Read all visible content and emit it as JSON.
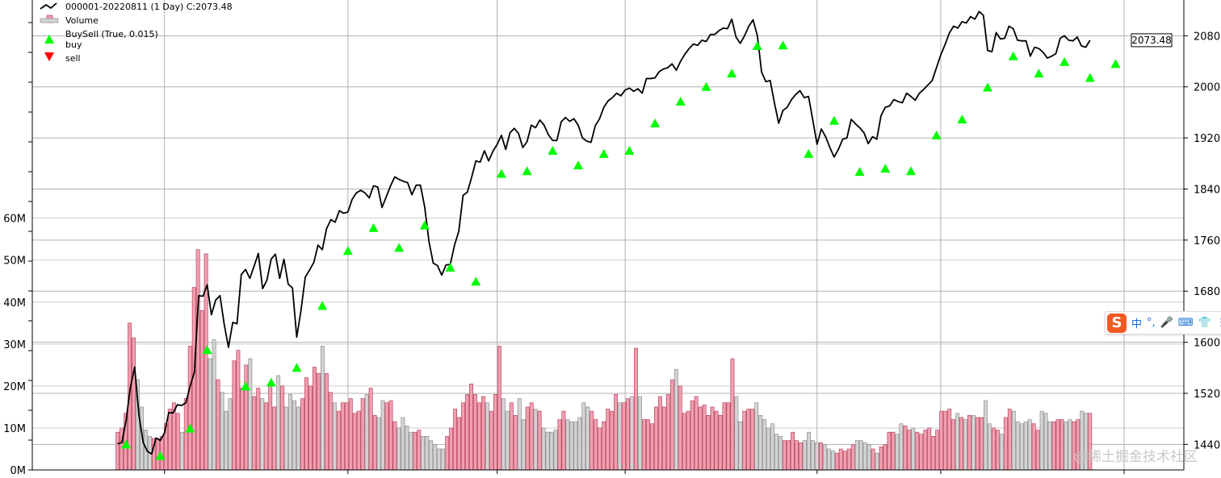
{
  "chart_data": {
    "type": "line",
    "legend": {
      "placement": "top-left",
      "entries": [
        {
          "label": "000001-20220811 (1 Day) C:2073.48",
          "marker": "line",
          "color": "#000000"
        },
        {
          "label": "Volume",
          "marker": "bar",
          "color": "#f0a0b0"
        },
        {
          "label": "BuySell (True, 0.015)",
          "marker": "none"
        },
        {
          "label": "buy",
          "marker": "triangle-up",
          "color": "#00ff00"
        },
        {
          "label": "sell",
          "marker": "triangle-down",
          "color": "#ff0000"
        }
      ]
    },
    "last_price_label": "2073.48",
    "price_axis": {
      "side": "right",
      "range": [
        1400,
        2136
      ],
      "ticks": [
        1440,
        1520,
        1600,
        1680,
        1760,
        1840,
        1920,
        2000,
        2080
      ]
    },
    "volume_axis": {
      "side": "left",
      "range": [
        0,
        112
      ],
      "unit": "M",
      "ticks": [
        0,
        10,
        20,
        30,
        40,
        50,
        60
      ],
      "tick_labels": [
        "0M",
        "10M",
        "20M",
        "30M",
        "40M",
        "50M",
        "60M"
      ]
    },
    "x_range": [
      -20,
      250
    ],
    "x_gridlines": [
      11,
      54,
      89,
      119,
      164,
      193,
      236,
      268
    ],
    "grid": true,
    "colors": {
      "close": "#000000",
      "volume_up": "#f0a0b0",
      "volume_down": "#d3d3d3",
      "volume_edge_up": "#b03050",
      "volume_edge_down": "#808080",
      "buy": "#00ff00",
      "sell": "#ff0000",
      "grid": "#b0b0b0"
    },
    "close_anchors": [
      [
        0,
        1441
      ],
      [
        1,
        1443
      ],
      [
        2,
        1478
      ],
      [
        3,
        1530
      ],
      [
        4,
        1561
      ],
      [
        5,
        1486
      ],
      [
        6,
        1443
      ],
      [
        7,
        1429
      ],
      [
        8,
        1425
      ],
      [
        9,
        1450
      ],
      [
        10,
        1446
      ],
      [
        11,
        1458
      ],
      [
        12,
        1490
      ],
      [
        13,
        1489
      ],
      [
        14,
        1502
      ],
      [
        15,
        1501
      ],
      [
        16,
        1505
      ],
      [
        17,
        1531
      ],
      [
        18,
        1553
      ],
      [
        19,
        1673
      ],
      [
        20,
        1672
      ],
      [
        21,
        1690
      ],
      [
        22,
        1643
      ],
      [
        23,
        1666
      ],
      [
        24,
        1673
      ],
      [
        25,
        1628
      ],
      [
        26,
        1592
      ],
      [
        27,
        1631
      ],
      [
        28,
        1629
      ],
      [
        29,
        1706
      ],
      [
        30,
        1714
      ],
      [
        31,
        1700
      ],
      [
        32,
        1719
      ],
      [
        33,
        1739
      ],
      [
        34,
        1684
      ],
      [
        35,
        1697
      ],
      [
        36,
        1730
      ],
      [
        37,
        1738
      ],
      [
        38,
        1700
      ],
      [
        39,
        1730
      ],
      [
        40,
        1691
      ],
      [
        41,
        1685
      ],
      [
        42,
        1608
      ],
      [
        43,
        1650
      ],
      [
        44,
        1702
      ],
      [
        45,
        1713
      ],
      [
        46,
        1725
      ],
      [
        47,
        1752
      ],
      [
        48,
        1745
      ],
      [
        49,
        1778
      ],
      [
        50,
        1792
      ],
      [
        51,
        1788
      ],
      [
        52,
        1806
      ],
      [
        53,
        1802
      ],
      [
        54,
        1804
      ],
      [
        55,
        1824
      ],
      [
        56,
        1834
      ],
      [
        57,
        1838
      ],
      [
        58,
        1834
      ],
      [
        59,
        1826
      ],
      [
        60,
        1845
      ],
      [
        61,
        1843
      ],
      [
        62,
        1811
      ],
      [
        63,
        1828
      ],
      [
        64,
        1845
      ],
      [
        65,
        1859
      ],
      [
        66,
        1855
      ],
      [
        67,
        1852
      ],
      [
        68,
        1850
      ],
      [
        69,
        1831
      ],
      [
        70,
        1846
      ],
      [
        71,
        1846
      ],
      [
        72,
        1812
      ],
      [
        73,
        1758
      ],
      [
        74,
        1724
      ],
      [
        75,
        1720
      ],
      [
        76,
        1705
      ],
      [
        77,
        1721
      ],
      [
        78,
        1722
      ],
      [
        79,
        1752
      ],
      [
        80,
        1774
      ],
      [
        81,
        1830
      ],
      [
        82,
        1835
      ],
      [
        83,
        1858
      ],
      [
        84,
        1884
      ],
      [
        85,
        1882
      ],
      [
        86,
        1900
      ],
      [
        87,
        1884
      ],
      [
        88,
        1899
      ],
      [
        89,
        1910
      ],
      [
        90,
        1924
      ],
      [
        91,
        1902
      ],
      [
        92,
        1928
      ],
      [
        93,
        1935
      ],
      [
        94,
        1927
      ],
      [
        95,
        1905
      ],
      [
        96,
        1914
      ],
      [
        97,
        1940
      ],
      [
        98,
        1936
      ],
      [
        99,
        1948
      ],
      [
        100,
        1940
      ],
      [
        101,
        1925
      ],
      [
        102,
        1916
      ],
      [
        103,
        1916
      ],
      [
        104,
        1945
      ],
      [
        105,
        1952
      ],
      [
        106,
        1946
      ],
      [
        107,
        1950
      ],
      [
        108,
        1940
      ],
      [
        109,
        1920
      ],
      [
        110,
        1915
      ],
      [
        111,
        1913
      ],
      [
        112,
        1939
      ],
      [
        113,
        1950
      ],
      [
        114,
        1968
      ],
      [
        115,
        1978
      ],
      [
        116,
        1983
      ],
      [
        117,
        1990
      ],
      [
        118,
        1986
      ],
      [
        119,
        1995
      ],
      [
        120,
        1998
      ],
      [
        121,
        1993
      ],
      [
        122,
        1997
      ],
      [
        123,
        1990
      ],
      [
        124,
        2013
      ],
      [
        125,
        2013
      ],
      [
        126,
        2014
      ],
      [
        127,
        2024
      ],
      [
        128,
        2028
      ],
      [
        129,
        2030
      ],
      [
        130,
        2036
      ],
      [
        131,
        2026
      ],
      [
        132,
        2040
      ],
      [
        133,
        2051
      ],
      [
        134,
        2060
      ],
      [
        135,
        2067
      ],
      [
        136,
        2065
      ],
      [
        137,
        2073
      ],
      [
        138,
        2071
      ],
      [
        139,
        2082
      ],
      [
        140,
        2082
      ],
      [
        141,
        2088
      ],
      [
        142,
        2092
      ],
      [
        143,
        2091
      ],
      [
        144,
        2106
      ],
      [
        145,
        2078
      ],
      [
        146,
        2068
      ],
      [
        147,
        2080
      ],
      [
        148,
        2095
      ],
      [
        149,
        2105
      ],
      [
        150,
        2080
      ],
      [
        151,
        2023
      ],
      [
        152,
        2008
      ],
      [
        153,
        2010
      ],
      [
        154,
        1975
      ],
      [
        155,
        1943
      ],
      [
        156,
        1963
      ],
      [
        157,
        1968
      ],
      [
        158,
        1980
      ],
      [
        159,
        1988
      ],
      [
        160,
        1994
      ],
      [
        161,
        1983
      ],
      [
        162,
        1985
      ],
      [
        163,
        1948
      ],
      [
        164,
        1910
      ],
      [
        165,
        1934
      ],
      [
        166,
        1922
      ],
      [
        167,
        1905
      ],
      [
        168,
        1890
      ],
      [
        169,
        1902
      ],
      [
        170,
        1918
      ],
      [
        171,
        1920
      ],
      [
        172,
        1949
      ],
      [
        173,
        1942
      ],
      [
        174,
        1936
      ],
      [
        175,
        1928
      ],
      [
        176,
        1911
      ],
      [
        177,
        1922
      ],
      [
        178,
        1918
      ],
      [
        179,
        1955
      ],
      [
        180,
        1968
      ],
      [
        181,
        1970
      ],
      [
        182,
        1980
      ],
      [
        183,
        1977
      ],
      [
        184,
        1975
      ],
      [
        185,
        1990
      ],
      [
        186,
        1985
      ],
      [
        187,
        1979
      ],
      [
        188,
        1990
      ],
      [
        189,
        1996
      ],
      [
        190,
        2003
      ],
      [
        191,
        2010
      ],
      [
        192,
        2030
      ],
      [
        193,
        2050
      ],
      [
        194,
        2066
      ],
      [
        195,
        2084
      ],
      [
        196,
        2095
      ],
      [
        197,
        2092
      ],
      [
        198,
        2102
      ],
      [
        199,
        2100
      ],
      [
        200,
        2110
      ],
      [
        201,
        2106
      ],
      [
        202,
        2118
      ],
      [
        203,
        2112
      ],
      [
        204,
        2057
      ],
      [
        205,
        2055
      ],
      [
        206,
        2085
      ],
      [
        207,
        2075
      ],
      [
        208,
        2076
      ],
      [
        209,
        2095
      ],
      [
        210,
        2091
      ],
      [
        211,
        2073
      ],
      [
        212,
        2072
      ],
      [
        213,
        2072
      ],
      [
        214,
        2048
      ],
      [
        215,
        2062
      ],
      [
        216,
        2060
      ],
      [
        217,
        2054
      ],
      [
        218,
        2045
      ],
      [
        219,
        2048
      ],
      [
        220,
        2052
      ],
      [
        221,
        2076
      ],
      [
        222,
        2080
      ],
      [
        223,
        2073
      ],
      [
        224,
        2072
      ],
      [
        225,
        2078
      ],
      [
        226,
        2064
      ],
      [
        227,
        2062
      ],
      [
        228,
        2073
      ]
    ],
    "buy_signals": [
      [
        2,
        1440
      ],
      [
        10,
        1422
      ],
      [
        17,
        1465
      ],
      [
        21,
        1588
      ],
      [
        30,
        1531
      ],
      [
        36,
        1537
      ],
      [
        42,
        1560
      ],
      [
        48,
        1657
      ],
      [
        54,
        1743
      ],
      [
        60,
        1779
      ],
      [
        66,
        1748
      ],
      [
        72,
        1783
      ],
      [
        78,
        1717
      ],
      [
        84,
        1695
      ],
      [
        90,
        1864
      ],
      [
        96,
        1868
      ],
      [
        102,
        1900
      ],
      [
        108,
        1877
      ],
      [
        114,
        1895
      ],
      [
        120,
        1900
      ],
      [
        126,
        1943
      ],
      [
        132,
        1977
      ],
      [
        138,
        2000
      ],
      [
        144,
        2021
      ],
      [
        150,
        2064
      ],
      [
        156,
        2065
      ],
      [
        162,
        1895
      ],
      [
        168,
        1947
      ],
      [
        174,
        1867
      ],
      [
        180,
        1872
      ],
      [
        186,
        1868
      ],
      [
        192,
        1924
      ],
      [
        198,
        1949
      ],
      [
        204,
        1999
      ],
      [
        210,
        2048
      ],
      [
        216,
        2021
      ],
      [
        222,
        2039
      ],
      [
        228,
        2014
      ],
      [
        234,
        2036
      ]
    ],
    "sell_signals": [],
    "volume_millions": [
      9,
      10,
      13.5,
      35,
      31.5,
      21.5,
      15,
      9.5,
      8,
      7.5,
      7.5,
      8,
      11,
      14.5,
      16,
      13.5,
      9,
      17,
      29.5,
      43.5,
      52.5,
      38,
      51.5,
      26.5,
      31,
      21.5,
      18.5,
      14,
      17,
      26,
      28.5,
      19.5,
      25,
      26.5,
      17.5,
      19.5,
      17,
      16,
      20,
      15,
      22.5,
      20,
      15,
      18,
      16.5,
      15,
      17,
      22,
      20,
      24.5,
      23,
      29.5,
      23,
      18.5,
      16,
      14,
      16,
      16,
      17,
      13.5,
      14,
      17,
      18,
      19.5,
      13,
      12.5,
      16.5,
      16,
      16.5,
      11.5,
      10,
      12.5,
      10.5,
      9,
      9,
      9.5,
      8,
      8,
      7,
      6,
      5,
      5,
      8,
      10,
      14.5,
      12.5,
      16,
      18,
      20.5,
      18,
      16,
      17.5,
      16,
      14,
      18,
      29.5,
      17,
      14,
      16,
      13,
      17,
      12,
      15,
      16,
      14.5,
      14,
      10,
      9,
      9,
      9.5,
      12,
      14,
      12,
      11.5,
      11.5,
      12.5,
      16,
      15,
      14,
      12,
      10,
      11.5,
      14.5,
      14,
      18,
      16,
      16,
      17,
      17.5,
      29,
      17.5,
      12,
      12,
      11,
      15,
      17.5,
      15,
      18,
      21.5,
      24,
      20,
      13.5,
      14,
      16.5,
      17.5,
      15,
      15.5,
      13,
      15,
      14,
      13,
      16,
      16,
      26.5,
      17.5,
      11.5,
      14,
      14.5,
      14.5,
      16,
      13,
      12,
      10,
      11,
      8.5,
      8,
      7,
      7,
      9,
      7,
      6.5,
      7,
      9,
      7,
      6.5,
      6.5,
      6,
      5,
      4.5,
      4,
      5,
      4.5,
      5,
      6,
      7,
      7,
      6.5,
      6,
      5,
      4,
      5.5,
      6,
      9,
      9,
      8.5,
      11,
      10.5,
      9.5,
      10,
      9,
      8.5,
      9.5,
      10,
      8,
      9.5,
      14,
      14,
      14.5,
      12,
      13.5,
      12.5,
      12,
      13,
      13,
      12.5,
      12.5,
      16.5,
      11,
      10,
      9.5,
      8.5,
      12.5,
      14.5,
      14,
      11.5,
      11,
      11.5,
      12,
      11,
      9.5,
      14,
      13.5,
      11.5,
      11.5,
      12,
      12,
      11.5,
      12,
      11.5,
      12,
      14,
      13.5,
      13.5
    ]
  },
  "watermark": "@稀土掘金技术社区",
  "ime_toolbar": {
    "logo": "S",
    "items": [
      "中",
      "°,",
      "🎤",
      "⌨",
      "👕",
      "⋮"
    ]
  }
}
